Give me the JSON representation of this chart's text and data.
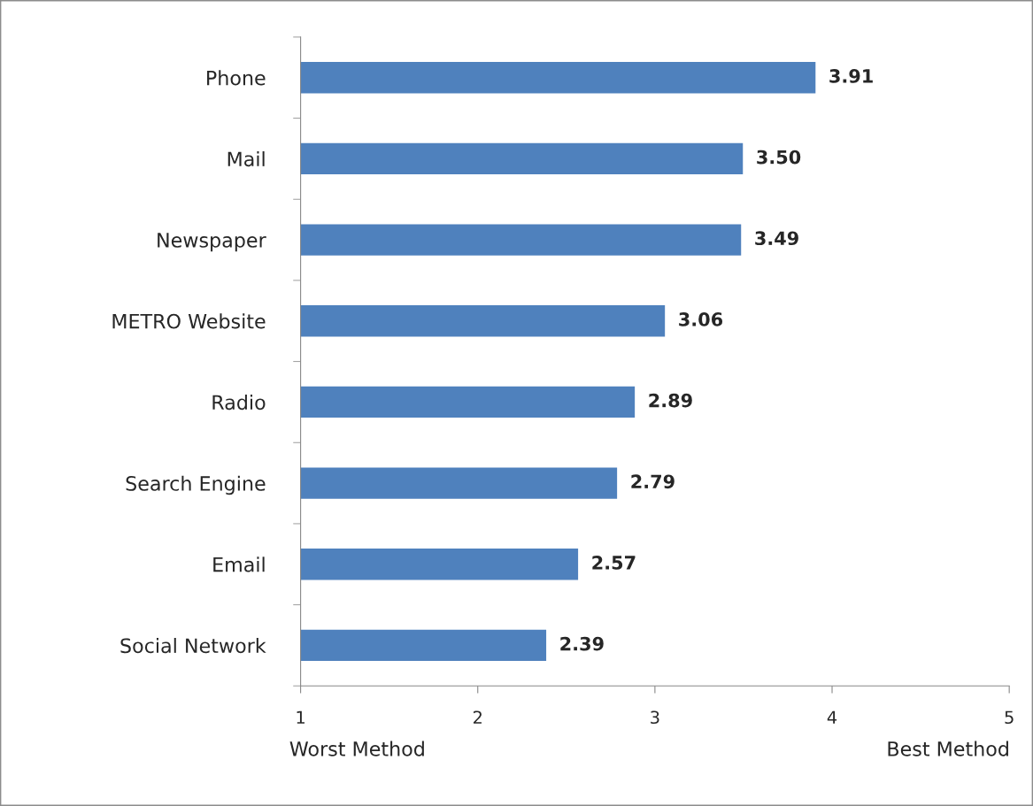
{
  "chart_data": {
    "type": "bar",
    "orientation": "horizontal",
    "categories": [
      "Phone",
      "Mail",
      "Newspaper",
      "METRO Website",
      "Radio",
      "Search Engine",
      "Email",
      "Social Network"
    ],
    "values": [
      3.91,
      3.5,
      3.49,
      3.06,
      2.89,
      2.79,
      2.57,
      2.39
    ],
    "value_labels": [
      "3.91",
      "3.50",
      "3.49",
      "3.06",
      "2.89",
      "2.79",
      "2.57",
      "2.39"
    ],
    "color": "#4f81bd",
    "xlim": [
      1,
      5
    ],
    "xticks": [
      1,
      2,
      3,
      4,
      5
    ],
    "annotations": [
      "Worst Method",
      "Best Method"
    ],
    "grid": false,
    "legend": false
  }
}
